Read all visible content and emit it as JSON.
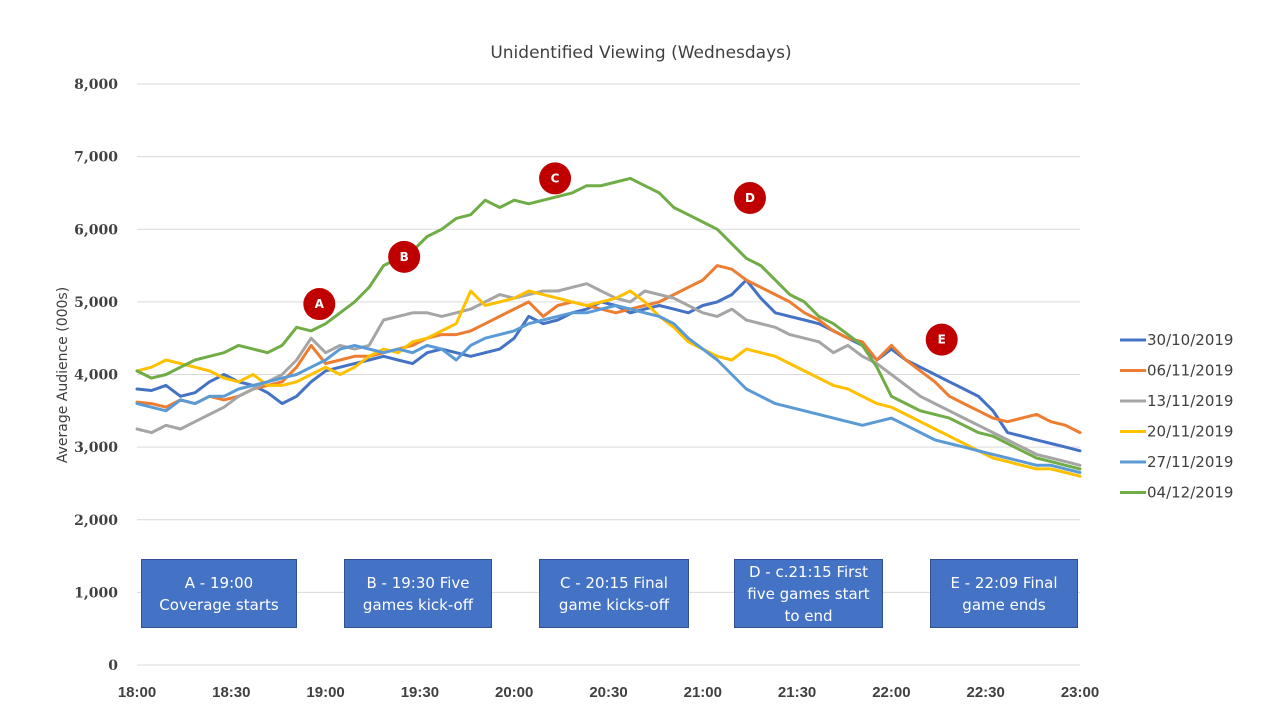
{
  "chart_data": {
    "type": "line",
    "title": "Unidentified Viewing (Wednesdays)",
    "xlabel": "",
    "ylabel": "Average Audience (000s)",
    "ylim": [
      0,
      8000
    ],
    "y_ticks": [
      0,
      1000,
      2000,
      3000,
      4000,
      5000,
      6000,
      7000,
      8000
    ],
    "y_tick_labels": [
      "0",
      "1,000",
      "2,000",
      "3,000",
      "4,000",
      "5,000",
      "6,000",
      "7,000",
      "8,000"
    ],
    "x_range_minutes": [
      0,
      300
    ],
    "x_ticks_minutes": [
      0,
      30,
      60,
      90,
      120,
      150,
      180,
      210,
      240,
      270,
      300
    ],
    "x_tick_labels": [
      "18:00",
      "18:30",
      "19:00",
      "19:30",
      "20:00",
      "20:30",
      "21:00",
      "21:30",
      "22:00",
      "22:30",
      "23:00"
    ],
    "grid": true,
    "legend_position": "right",
    "x_step_minutes": 5,
    "series": [
      {
        "name": "30/10/2019",
        "color": "#4472c4",
        "values": [
          3800,
          3780,
          3850,
          3700,
          3750,
          3900,
          4000,
          3900,
          3850,
          3750,
          3600,
          3700,
          3900,
          4050,
          4100,
          4150,
          4200,
          4250,
          4200,
          4150,
          4300,
          4350,
          4300,
          4250,
          4300,
          4350,
          4500,
          4800,
          4700,
          4750,
          4850,
          4900,
          5000,
          4950,
          4850,
          4900,
          4950,
          4900,
          4850,
          4950,
          5000,
          5100,
          5300,
          5050,
          4850,
          4800,
          4750,
          4700,
          4600,
          4500,
          4400,
          4200,
          4350,
          4200,
          4100,
          4000,
          3900,
          3800,
          3700,
          3500,
          3200,
          3150,
          3100,
          3050,
          3000,
          2950
        ]
      },
      {
        "name": "06/11/2019",
        "color": "#ed7d31",
        "values": [
          3620,
          3600,
          3550,
          3650,
          3600,
          3700,
          3650,
          3700,
          3800,
          3850,
          3900,
          4100,
          4400,
          4150,
          4200,
          4250,
          4250,
          4300,
          4350,
          4400,
          4500,
          4550,
          4550,
          4600,
          4700,
          4800,
          4900,
          5000,
          4800,
          4950,
          5000,
          4950,
          4900,
          4850,
          4900,
          4950,
          5000,
          5100,
          5200,
          5300,
          5500,
          5450,
          5300,
          5200,
          5100,
          5000,
          4850,
          4750,
          4600,
          4500,
          4450,
          4200,
          4400,
          4200,
          4050,
          3900,
          3700,
          3600,
          3500,
          3400,
          3350,
          3400,
          3450,
          3350,
          3300,
          3200
        ]
      },
      {
        "name": "13/11/2019",
        "color": "#a5a5a5",
        "values": [
          3250,
          3200,
          3300,
          3250,
          3350,
          3450,
          3550,
          3700,
          3800,
          3900,
          4000,
          4200,
          4500,
          4300,
          4400,
          4350,
          4400,
          4750,
          4800,
          4850,
          4850,
          4800,
          4850,
          4900,
          5000,
          5100,
          5050,
          5100,
          5150,
          5150,
          5200,
          5250,
          5150,
          5050,
          5000,
          5150,
          5100,
          5050,
          4950,
          4850,
          4800,
          4900,
          4750,
          4700,
          4650,
          4550,
          4500,
          4450,
          4300,
          4400,
          4250,
          4150,
          4000,
          3850,
          3700,
          3600,
          3500,
          3400,
          3300,
          3200,
          3100,
          3000,
          2900,
          2850,
          2800,
          2750
        ]
      },
      {
        "name": "20/11/2019",
        "color": "#ffc000",
        "values": [
          4050,
          4100,
          4200,
          4150,
          4100,
          4050,
          3950,
          3900,
          4000,
          3850,
          3850,
          3900,
          4000,
          4100,
          4000,
          4100,
          4250,
          4350,
          4300,
          4450,
          4500,
          4600,
          4700,
          5150,
          4950,
          5000,
          5050,
          5150,
          5100,
          5050,
          5000,
          4950,
          5000,
          5050,
          5150,
          5000,
          4800,
          4650,
          4450,
          4350,
          4250,
          4200,
          4350,
          4300,
          4250,
          4150,
          4050,
          3950,
          3850,
          3800,
          3700,
          3600,
          3550,
          3450,
          3350,
          3250,
          3150,
          3050,
          2950,
          2850,
          2800,
          2750,
          2700,
          2700,
          2650,
          2600
        ]
      },
      {
        "name": "27/11/2019",
        "color": "#5b9bd5",
        "values": [
          3600,
          3550,
          3500,
          3650,
          3600,
          3700,
          3700,
          3800,
          3850,
          3900,
          3950,
          4000,
          4100,
          4200,
          4350,
          4400,
          4350,
          4300,
          4350,
          4300,
          4400,
          4350,
          4200,
          4400,
          4500,
          4550,
          4600,
          4700,
          4750,
          4800,
          4850,
          4850,
          4900,
          4950,
          4900,
          4850,
          4800,
          4700,
          4500,
          4350,
          4200,
          4000,
          3800,
          3700,
          3600,
          3550,
          3500,
          3450,
          3400,
          3350,
          3300,
          3350,
          3400,
          3300,
          3200,
          3100,
          3050,
          3000,
          2950,
          2900,
          2850,
          2800,
          2750,
          2750,
          2700,
          2650
        ]
      },
      {
        "name": "04/12/2019",
        "color": "#70ad47",
        "values": [
          4050,
          3950,
          4000,
          4100,
          4200,
          4250,
          4300,
          4400,
          4350,
          4300,
          4400,
          4650,
          4600,
          4700,
          4850,
          5000,
          5200,
          5500,
          5600,
          5700,
          5900,
          6000,
          6150,
          6200,
          6400,
          6300,
          6400,
          6350,
          6400,
          6450,
          6500,
          6600,
          6600,
          6650,
          6700,
          6600,
          6500,
          6300,
          6200,
          6100,
          6000,
          5800,
          5600,
          5500,
          5300,
          5100,
          5000,
          4800,
          4700,
          4550,
          4400,
          4100,
          3700,
          3600,
          3500,
          3450,
          3400,
          3300,
          3200,
          3150,
          3050,
          2950,
          2850,
          2800,
          2750,
          2700
        ]
      }
    ],
    "markers": [
      {
        "label": "A",
        "time_minutes": 58,
        "value": 4970
      },
      {
        "label": "B",
        "time_minutes": 85,
        "value": 5620
      },
      {
        "label": "C",
        "time_minutes": 133,
        "value": 6700
      },
      {
        "label": "D",
        "time_minutes": 195,
        "value": 6430
      },
      {
        "label": "E",
        "time_minutes": 256,
        "value": 4480
      }
    ],
    "annotations": [
      {
        "id": "A",
        "lines": [
          "A - 19:00",
          "Coverage starts"
        ]
      },
      {
        "id": "B",
        "lines": [
          "B - 19:30 Five",
          "games kick-off"
        ]
      },
      {
        "id": "C",
        "lines": [
          "C - 20:15 Final",
          "game kicks-off"
        ]
      },
      {
        "id": "D",
        "lines": [
          "D - c.21:15 First",
          "five games start",
          "to end"
        ]
      },
      {
        "id": "E",
        "lines": [
          "E - 22:09 Final",
          "game ends"
        ]
      }
    ]
  }
}
